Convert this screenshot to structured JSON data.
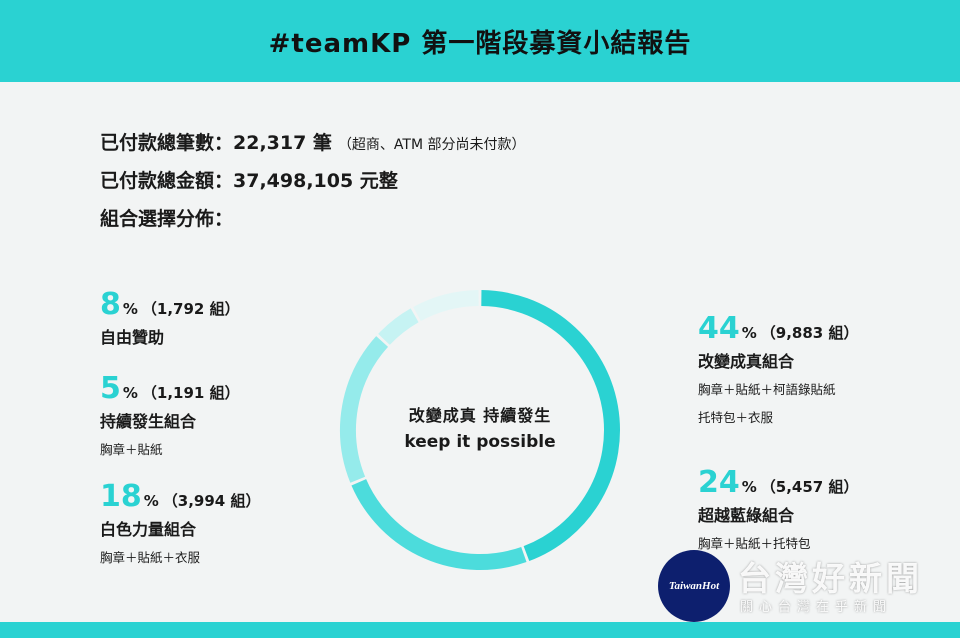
{
  "title": "#teamKP 第一階段募資小結報告",
  "summary": {
    "paid_count_label": "已付款總筆數：22,317 筆",
    "paid_count_note": "（超商、ATM 部分尚未付款）",
    "paid_amount_label": "已付款總金額：37,498,105 元整",
    "distribution_label": "組合選擇分佈："
  },
  "stats": [
    {
      "pct": "8",
      "unit": "%",
      "count": "（1,792 組）",
      "name": "自由贊助",
      "desc": ""
    },
    {
      "pct": "5",
      "unit": "%",
      "count": "（1,191 組）",
      "name": "持續發生組合",
      "desc": "胸章＋貼紙"
    },
    {
      "pct": "18",
      "unit": "%",
      "count": "（3,994 組）",
      "name": "白色力量組合",
      "desc": "胸章＋貼紙＋衣服"
    },
    {
      "pct": "44",
      "unit": "%",
      "count": "（9,883 組）",
      "name": "改變成真組合",
      "desc": "胸章＋貼紙＋柯語錄貼紙",
      "desc2": "托特包＋衣服"
    },
    {
      "pct": "24",
      "unit": "%",
      "count": "（5,457 組）",
      "name": "超越藍綠組合",
      "desc": "胸章＋貼紙＋托特包"
    }
  ],
  "center": {
    "line1": "改變成真 持續發生",
    "line2": "keep it possible"
  },
  "watermark": {
    "logo": "TaiwanHot",
    "title": "台灣好新聞",
    "subtitle": "關心台灣在乎新聞"
  },
  "colors": {
    "accent": "#2ad2d2",
    "background": "#f2f4f4"
  },
  "chart_data": {
    "type": "pie",
    "categories": [
      "改變成真組合",
      "超越藍綠組合",
      "白色力量組合",
      "持續發生組合",
      "自由贊助"
    ],
    "values": [
      44,
      24,
      18,
      5,
      8
    ],
    "counts": [
      9883,
      5457,
      3994,
      1191,
      1792
    ],
    "unit": "%",
    "colors": [
      "#2ad2d2",
      "#4cdcdc",
      "#95ebeb",
      "#c6f3f3",
      "#e3f6f6"
    ],
    "donut": true
  }
}
